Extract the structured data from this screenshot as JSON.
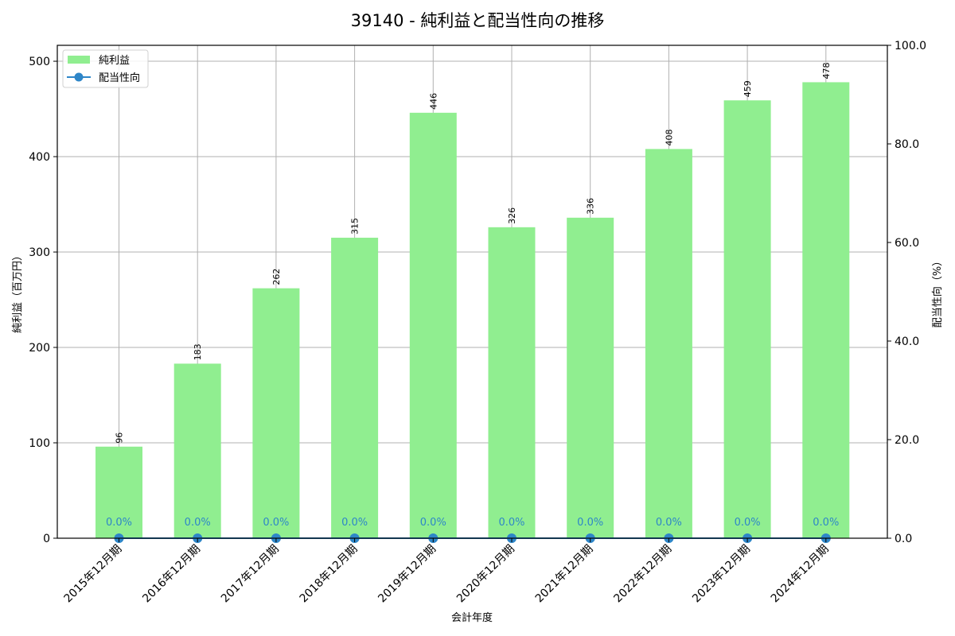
{
  "chart_data": {
    "type": "bar",
    "title": "39140 - 純利益と配当性向の推移",
    "xlabel": "会計年度",
    "ylabel": "純利益（百万円）",
    "y2label": "配当性向（%）",
    "categories": [
      "2015年12月期",
      "2016年12月期",
      "2017年12月期",
      "2018年12月期",
      "2019年12月期",
      "2020年12月期",
      "2021年12月期",
      "2022年12月期",
      "2023年12月期",
      "2024年12月期"
    ],
    "series": [
      {
        "name": "純利益",
        "type": "bar",
        "axis": "left",
        "color": "#90ee90",
        "values": [
          96,
          183,
          262,
          315,
          446,
          326,
          336,
          408,
          459,
          478
        ]
      },
      {
        "name": "配当性向",
        "type": "line",
        "axis": "right",
        "color": "#2e86c8",
        "values": [
          0.0,
          0.0,
          0.0,
          0.0,
          0.0,
          0.0,
          0.0,
          0.0,
          0.0,
          0.0
        ]
      }
    ],
    "bar_labels": [
      "96",
      "183",
      "262",
      "315",
      "446",
      "326",
      "336",
      "408",
      "459",
      "478"
    ],
    "line_labels": [
      "0.0%",
      "0.0%",
      "0.0%",
      "0.0%",
      "0.0%",
      "0.0%",
      "0.0%",
      "0.0%",
      "0.0%",
      "0.0%"
    ],
    "ylim": [
      0,
      516.7
    ],
    "y2lim": [
      0,
      100
    ],
    "yticks": [
      0,
      100,
      200,
      300,
      400,
      500
    ],
    "ytick_labels": [
      "0",
      "100",
      "200",
      "300",
      "400",
      "500"
    ],
    "y2ticks": [
      0,
      20,
      40,
      60,
      80,
      100
    ],
    "y2tick_labels": [
      "0.0",
      "20.0",
      "40.0",
      "60.0",
      "80.0",
      "100.0"
    ],
    "grid": true,
    "legend_position": "upper left",
    "legend": [
      {
        "label": "純利益",
        "kind": "bar",
        "color": "#90ee90"
      },
      {
        "label": "配当性向",
        "kind": "line-marker",
        "color": "#2e86c8"
      }
    ]
  }
}
